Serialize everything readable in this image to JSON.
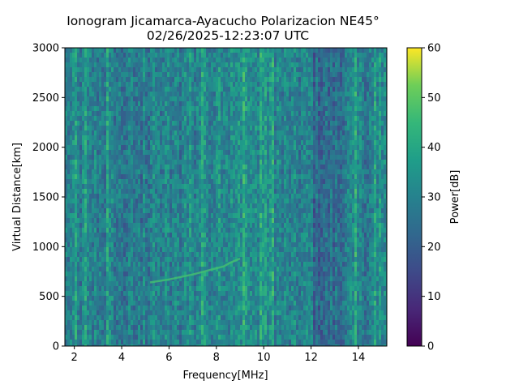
{
  "chart_data": {
    "type": "heatmap",
    "title_line1": "Ionogram Jicamarca-Ayacucho Polarizacion NE45°",
    "title_line2": "02/26/2025-12:23:07 UTC",
    "xlabel": "Frequency[MHz]",
    "ylabel": "Virtual Distance[km]",
    "xlim": [
      1.6,
      15.2
    ],
    "ylim": [
      0,
      3000
    ],
    "xticks": [
      "2",
      "4",
      "6",
      "8",
      "10",
      "12",
      "14"
    ],
    "yticks": [
      "0",
      "500",
      "1000",
      "1500",
      "2000",
      "2500",
      "3000"
    ],
    "colorbar": {
      "label": "Power[dB]",
      "range": [
        0,
        60
      ],
      "ticks": [
        "0",
        "10",
        "20",
        "30",
        "40",
        "50",
        "60"
      ],
      "colormap": "viridis"
    },
    "trace": {
      "x": [
        5.2,
        6.0,
        7.0,
        7.8,
        8.3,
        8.6,
        9.0
      ],
      "y": [
        640,
        670,
        720,
        770,
        800,
        840,
        880
      ]
    },
    "bright_columns_mhz": [
      2.1,
      2.5,
      3.4,
      4.9,
      6.7,
      6.9,
      7.4,
      8.1,
      9.2,
      9.9,
      10.1,
      10.4,
      13.9,
      14.7,
      14.9
    ]
  }
}
